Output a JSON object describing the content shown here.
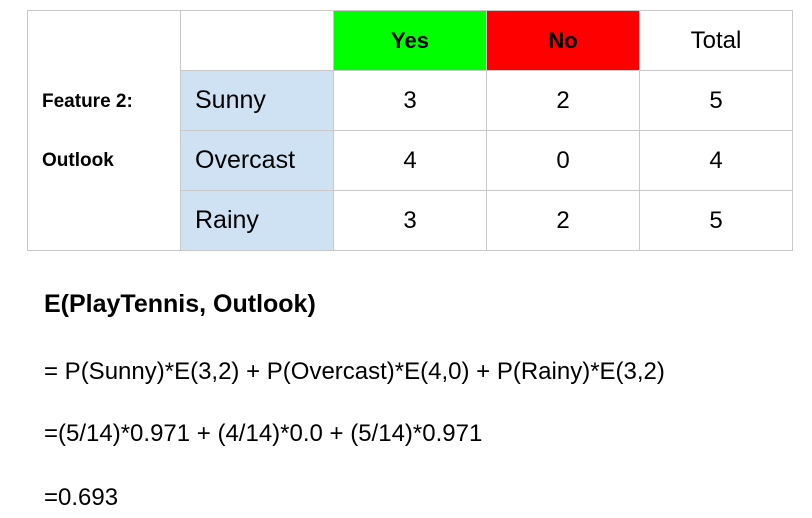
{
  "table": {
    "feature_label_line1": "Feature 2:",
    "feature_label_line2": "Outlook",
    "headers": {
      "yes": "Yes",
      "no": "No",
      "total": "Total"
    },
    "rows": [
      {
        "value": "Sunny",
        "yes": "3",
        "no": "2",
        "total": "5"
      },
      {
        "value": "Overcast",
        "yes": "4",
        "no": "0",
        "total": "4"
      },
      {
        "value": "Rainy",
        "yes": "3",
        "no": "2",
        "total": "5"
      }
    ],
    "colors": {
      "yes_header": "#00ff00",
      "no_header": "#ff0000",
      "value_cell": "#cfe2f3",
      "border": "#c8c8c8"
    }
  },
  "formula": {
    "title": "E(PlayTennis, Outlook)",
    "lines": [
      "= P(Sunny)*E(3,2) + P(Overcast)*E(4,0) + P(Rainy)*E(3,2)",
      "=(5/14)*0.971 + (4/14)*0.0 + (5/14)*0.971",
      "=0.693"
    ]
  }
}
